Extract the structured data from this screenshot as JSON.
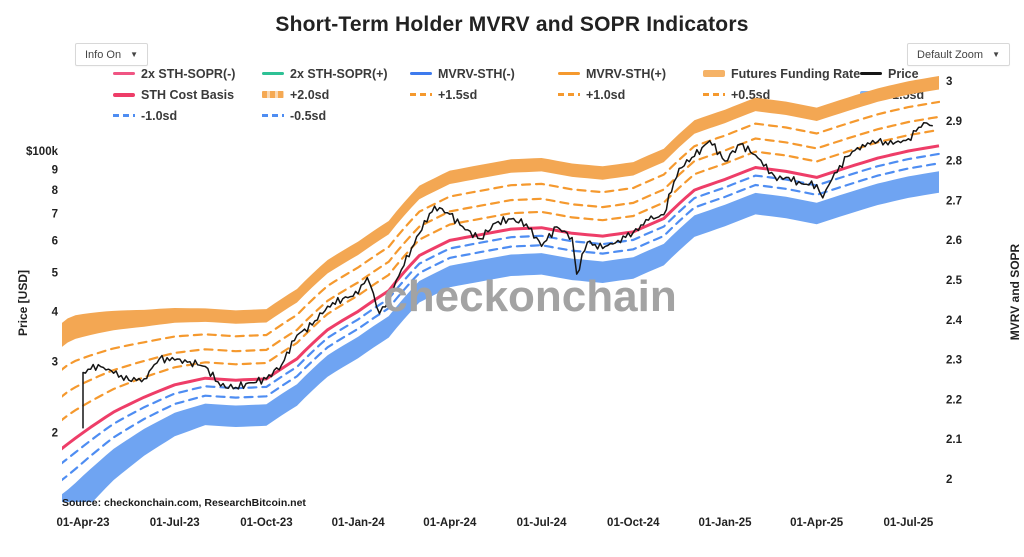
{
  "header": {
    "title": "Short-Term Holder MVRV and SOPR Indicators",
    "info_dropdown_label": "Info On",
    "zoom_dropdown_label": "Default Zoom",
    "dropdown_caret": "▼"
  },
  "watermark": "checkonchain",
  "source_note": "Source: checkonchain.com, ResearchBitcoin.net",
  "colors": {
    "orange_band": "#F3A753",
    "orange_dash": "#F5992E",
    "pink_line": "#EE3D68",
    "blue_dash": "#4E8DF2",
    "blue_band": "#6FA4F2",
    "price_black": "#151515",
    "watermark_gray": "#a3a3a3"
  },
  "legend": {
    "items": [
      {
        "label": "2x STH-SOPR(-)",
        "swatch": "line",
        "color": "#F05583"
      },
      {
        "label": "2x STH-SOPR(+)",
        "swatch": "line",
        "color": "#2EC195"
      },
      {
        "label": "MVRV-STH(-)",
        "swatch": "line",
        "color": "#3E7BEE"
      },
      {
        "label": "MVRV-STH(+)",
        "swatch": "line",
        "color": "#F5992E"
      },
      {
        "label": "Futures Funding Rate",
        "swatch": "band",
        "color": "#F5B266"
      },
      {
        "label": "Price",
        "swatch": "line",
        "color": "#151515"
      },
      {
        "label": "STH Cost Basis",
        "swatch": "line-thick",
        "color": "#EE3D68"
      },
      {
        "label": "+2.0sd",
        "swatch": "band-dash",
        "color": "#F5A953"
      },
      {
        "label": "+1.5sd",
        "swatch": "dashed",
        "color": "#F5992E"
      },
      {
        "label": "+1.0sd",
        "swatch": "dashed",
        "color": "#F5992E"
      },
      {
        "label": "+0.5sd",
        "swatch": "dashed",
        "color": "#F5992E"
      },
      {
        "label": "-1.5sd",
        "swatch": "band",
        "color": "#7FB3F7"
      },
      {
        "label": "-1.0sd",
        "swatch": "dashed",
        "color": "#4E8DF2"
      },
      {
        "label": "-0.5sd",
        "swatch": "dashed",
        "color": "#4E8DF2"
      }
    ]
  },
  "chart_data": {
    "type": "line",
    "title": "Short-Term Holder MVRV and SOPR Indicators",
    "left_axis": {
      "label": "Price [USD]",
      "scale": "log",
      "units": "USD thousands",
      "ticks": [
        {
          "label": "$100k",
          "value": 100
        },
        {
          "label": "9",
          "value": 90
        },
        {
          "label": "8",
          "value": 80
        },
        {
          "label": "7",
          "value": 70
        },
        {
          "label": "6",
          "value": 60
        },
        {
          "label": "5",
          "value": 50
        },
        {
          "label": "4",
          "value": 40
        },
        {
          "label": "3",
          "value": 30
        },
        {
          "label": "2",
          "value": 20
        }
      ]
    },
    "right_axis": {
      "label": "MVRV and SOPR",
      "scale": "linear",
      "range": [
        2,
        3
      ],
      "ticks": [
        "3",
        "2.9",
        "2.8",
        "2.7",
        "2.6",
        "2.5",
        "2.4",
        "2.3",
        "2.2",
        "2.1",
        "2"
      ]
    },
    "x_axis": {
      "start_month": "2023-04",
      "months_span": 28,
      "ticks": [
        {
          "label": "01-Apr-23",
          "month": 0
        },
        {
          "label": "01-Jul-23",
          "month": 3
        },
        {
          "label": "01-Oct-23",
          "month": 6
        },
        {
          "label": "01-Jan-24",
          "month": 9
        },
        {
          "label": "01-Apr-24",
          "month": 12
        },
        {
          "label": "01-Jul-24",
          "month": 15
        },
        {
          "label": "01-Oct-24",
          "month": 18
        },
        {
          "label": "01-Jan-25",
          "month": 21
        },
        {
          "label": "01-Apr-25",
          "month": 24
        },
        {
          "label": "01-Jul-25",
          "month": 27
        }
      ]
    },
    "series": {
      "price": {
        "name": "Price",
        "color": "#151515",
        "points_month_usdk": [
          [
            0,
            20.5
          ],
          [
            0,
            28.2
          ],
          [
            0.5,
            29.5
          ],
          [
            1,
            28.1
          ],
          [
            1.5,
            27.0
          ],
          [
            2,
            27.2
          ],
          [
            2.5,
            30.5
          ],
          [
            3,
            30.3
          ],
          [
            3.5,
            30.0
          ],
          [
            4,
            29.2
          ],
          [
            4.5,
            26.1
          ],
          [
            5,
            25.9
          ],
          [
            5.5,
            26.6
          ],
          [
            6,
            27.2
          ],
          [
            6.5,
            29.5
          ],
          [
            7,
            34.9
          ],
          [
            7.5,
            37.0
          ],
          [
            8,
            41.2
          ],
          [
            8.5,
            43.0
          ],
          [
            9,
            44.2
          ],
          [
            9.3,
            48.5
          ],
          [
            9.7,
            39.5
          ],
          [
            10,
            43.1
          ],
          [
            10.5,
            52.0
          ],
          [
            11,
            62.4
          ],
          [
            11.5,
            73.0
          ],
          [
            12,
            69.7
          ],
          [
            12.5,
            63.8
          ],
          [
            13,
            60.6
          ],
          [
            13.5,
            66.3
          ],
          [
            14,
            67.8
          ],
          [
            14.5,
            65.9
          ],
          [
            15,
            58.0
          ],
          [
            15.5,
            64.8
          ],
          [
            16,
            61.0
          ],
          [
            16.15,
            49.5
          ],
          [
            16.5,
            59.4
          ],
          [
            17,
            57.3
          ],
          [
            17.5,
            60.0
          ],
          [
            18,
            62.8
          ],
          [
            18.5,
            67.4
          ],
          [
            19,
            69.5
          ],
          [
            19.5,
            90.5
          ],
          [
            20,
            97.0
          ],
          [
            20.5,
            106.0
          ],
          [
            21,
            94.4
          ],
          [
            21.5,
            104.0
          ],
          [
            22,
            97.7
          ],
          [
            22.7,
            84.5
          ],
          [
            23,
            86.0
          ],
          [
            23.5,
            83.0
          ],
          [
            24,
            82.5
          ],
          [
            24.2,
            76.5
          ],
          [
            24.5,
            85.1
          ],
          [
            25,
            96.9
          ],
          [
            25.5,
            103.7
          ],
          [
            26,
            105.6
          ],
          [
            26.5,
            104.0
          ],
          [
            27,
            107.2
          ],
          [
            27.5,
            117.5
          ],
          [
            27.8,
            115.5
          ]
        ]
      },
      "sth_cost_basis": {
        "name": "STH Cost Basis",
        "color": "#EE3D68",
        "month_step": 1,
        "values_usdk": [
          20.0,
          22.5,
          24.5,
          26.3,
          27.3,
          27.0,
          27.2,
          30.5,
          36.0,
          40.0,
          45.0,
          55.0,
          60.0,
          62.0,
          64.0,
          64.5,
          62.5,
          61.5,
          63.0,
          68.0,
          80.0,
          85.0,
          91.0,
          89.0,
          86.0,
          91.0,
          96.0,
          100.0,
          103.0
        ]
      },
      "sd_bands_relative_to_cost_basis": [
        {
          "name": "+2.0sd",
          "style": "band",
          "color": "#F3A753",
          "mult_outer": 1.49,
          "mult_inner": 1.38
        },
        {
          "name": "+1.5sd",
          "style": "dashed",
          "color": "#F5992E",
          "mult": 1.285
        },
        {
          "name": "+1.0sd",
          "style": "dashed",
          "color": "#F5992E",
          "mult": 1.18
        },
        {
          "name": "+0.5sd",
          "style": "dashed",
          "color": "#F5992E",
          "mult": 1.095
        },
        {
          "name": "-0.5sd",
          "style": "dashed",
          "color": "#4E8DF2",
          "mult": 0.955
        },
        {
          "name": "-1.0sd",
          "style": "dashed",
          "color": "#4E8DF2",
          "mult": 0.905
        },
        {
          "name": "-1.5sd",
          "style": "band",
          "color": "#6FA4F2",
          "mult_outer": 0.765,
          "mult_inner": 0.865
        }
      ],
      "band_width_profile": [
        1.7,
        1.45,
        1.25,
        1.1,
        1.0,
        1.0,
        1.0,
        1.0,
        1.0,
        1.0,
        1.0,
        1.0,
        1.0,
        1.0,
        1.0,
        1.0,
        1.0,
        1.0,
        1.0,
        1.0,
        1.0,
        1.0,
        1.0,
        1.0,
        1.0,
        1.0,
        1.0,
        1.0,
        1.0
      ],
      "hidden_or_offscale": [
        "2x STH-SOPR(-)",
        "2x STH-SOPR(+)",
        "MVRV-STH(-)",
        "MVRV-STH(+)",
        "Futures Funding Rate"
      ]
    }
  }
}
